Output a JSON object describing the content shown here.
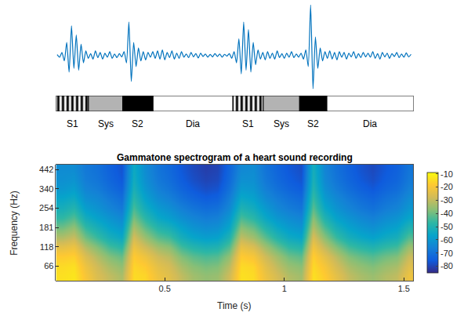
{
  "chart_data": [
    {
      "type": "line",
      "color": "#0072bd",
      "tick_labels": false,
      "xlim": [
        0.045,
        1.54
      ],
      "ylim": [
        -1.0,
        1.45
      ],
      "x": [
        0.05,
        0.06,
        0.07,
        0.08,
        0.09,
        0.1,
        0.11,
        0.12,
        0.13,
        0.14,
        0.15,
        0.16,
        0.17,
        0.18,
        0.19,
        0.2,
        0.21,
        0.22,
        0.23,
        0.24,
        0.25,
        0.26,
        0.27,
        0.28,
        0.29,
        0.3,
        0.31,
        0.32,
        0.33,
        0.34,
        0.35,
        0.36,
        0.37,
        0.38,
        0.39,
        0.4,
        0.41,
        0.42,
        0.43,
        0.44,
        0.45,
        0.46,
        0.47,
        0.48,
        0.49,
        0.5,
        0.51,
        0.52,
        0.53,
        0.54,
        0.55,
        0.56,
        0.57,
        0.58,
        0.59,
        0.6,
        0.61,
        0.62,
        0.63,
        0.64,
        0.65,
        0.66,
        0.67,
        0.68,
        0.69,
        0.7,
        0.71,
        0.72,
        0.73,
        0.74,
        0.75,
        0.76,
        0.77,
        0.78,
        0.79,
        0.8,
        0.81,
        0.82,
        0.83,
        0.84,
        0.85,
        0.86,
        0.87,
        0.88,
        0.89,
        0.9,
        0.91,
        0.92,
        0.93,
        0.94,
        0.95,
        0.96,
        0.97,
        0.98,
        0.99,
        1.0,
        1.01,
        1.02,
        1.03,
        1.04,
        1.05,
        1.06,
        1.07,
        1.08,
        1.09,
        1.1,
        1.11,
        1.12,
        1.13,
        1.14,
        1.15,
        1.16,
        1.17,
        1.18,
        1.19,
        1.2,
        1.21,
        1.22,
        1.23,
        1.24,
        1.25,
        1.26,
        1.27,
        1.28,
        1.29,
        1.3,
        1.31,
        1.32,
        1.33,
        1.34,
        1.35,
        1.36,
        1.37,
        1.38,
        1.39,
        1.4,
        1.41,
        1.42,
        1.43,
        1.44,
        1.45,
        1.46,
        1.47,
        1.48,
        1.49,
        1.5,
        1.51,
        1.52,
        1.53
      ],
      "values": [
        0.02,
        -0.05,
        0.08,
        -0.15,
        0.35,
        -0.45,
        0.8,
        -0.35,
        0.55,
        -0.4,
        0.3,
        -0.2,
        0.12,
        -0.08,
        0.05,
        -0.1,
        0.12,
        -0.06,
        0.08,
        -0.1,
        0.06,
        -0.05,
        0.1,
        -0.08,
        0.04,
        -0.06,
        0.05,
        -0.04,
        0.1,
        -0.2,
        0.9,
        -0.7,
        0.35,
        -0.3,
        0.2,
        -0.15,
        0.1,
        -0.12,
        0.08,
        -0.05,
        0.1,
        -0.08,
        0.12,
        -0.1,
        0.15,
        -0.12,
        0.08,
        -0.06,
        0.12,
        -0.1,
        0.06,
        -0.08,
        0.1,
        -0.05,
        0.04,
        -0.06,
        0.08,
        -0.04,
        0.05,
        -0.07,
        0.06,
        -0.03,
        0.04,
        -0.05,
        0.03,
        -0.04,
        0.05,
        -0.03,
        0.04,
        -0.05,
        0.03,
        -0.02,
        0.05,
        -0.08,
        0.1,
        -0.2,
        0.45,
        -0.5,
        0.9,
        -0.4,
        0.7,
        -0.45,
        0.35,
        -0.25,
        0.15,
        -0.1,
        0.08,
        -0.12,
        0.1,
        -0.08,
        0.06,
        -0.1,
        0.12,
        -0.06,
        0.05,
        -0.08,
        0.06,
        -0.05,
        0.1,
        -0.06,
        0.04,
        -0.05,
        0.06,
        -0.1,
        0.15,
        -0.3,
        1.36,
        -0.9,
        0.5,
        -0.35,
        0.2,
        -0.15,
        0.1,
        -0.08,
        0.12,
        -0.1,
        0.08,
        -0.12,
        0.1,
        -0.05,
        0.08,
        -0.1,
        0.06,
        -0.04,
        0.1,
        -0.08,
        0.05,
        -0.06,
        0.08,
        -0.04,
        0.06,
        -0.05,
        0.1,
        -0.08,
        0.05,
        -0.1,
        0.08,
        -0.04,
        0.06,
        -0.08,
        0.05,
        -0.03,
        0.08,
        -0.06,
        0.04,
        -0.05,
        0.07,
        -0.04,
        0.03
      ]
    },
    {
      "type": "segments",
      "xlim": [
        0.045,
        1.54
      ],
      "segments": [
        {
          "label": "S1",
          "start": 0.045,
          "end": 0.181,
          "color": "#ffffff",
          "marker": "vertical-stripes"
        },
        {
          "label": "Sys",
          "start": 0.181,
          "end": 0.324,
          "color": "#b3b3b3"
        },
        {
          "label": "S2",
          "start": 0.324,
          "end": 0.451,
          "color": "#000000"
        },
        {
          "label": "Dia",
          "start": 0.451,
          "end": 0.785,
          "color": "#ffffff"
        },
        {
          "label": "S1",
          "start": 0.785,
          "end": 0.912,
          "color": "#ffffff",
          "marker": "vertical-stripes"
        },
        {
          "label": "Sys",
          "start": 0.912,
          "end": 1.064,
          "color": "#b3b3b3"
        },
        {
          "label": "S2",
          "start": 1.064,
          "end": 1.178,
          "color": "#000000"
        },
        {
          "label": "Dia",
          "start": 1.178,
          "end": 1.54,
          "color": "#ffffff"
        }
      ]
    },
    {
      "type": "heatmap",
      "title": "Gammatone spectrogram of a heart sound recording",
      "x_label": "Time (s)",
      "y_label": "Frequency (Hz)",
      "xlim": [
        0.045,
        1.54
      ],
      "xticks": [
        0.5,
        1,
        1.5
      ],
      "x": [
        0.07,
        0.12,
        0.17,
        0.22,
        0.27,
        0.32,
        0.37,
        0.42,
        0.47,
        0.52,
        0.57,
        0.62,
        0.67,
        0.72,
        0.77,
        0.82,
        0.87,
        0.92,
        0.97,
        1.02,
        1.07,
        1.12,
        1.17,
        1.22,
        1.27,
        1.32,
        1.37,
        1.42,
        1.47,
        1.52
      ],
      "categories": [
        null,
        "66",
        null,
        "118",
        null,
        "181",
        null,
        "254",
        null,
        "340",
        null,
        "442"
      ],
      "cells": [
        [
          -14,
          -13,
          -20,
          -26,
          -30,
          -33,
          -15,
          -16,
          -22,
          -25,
          -30,
          -34,
          -36,
          -35,
          -28,
          -14,
          -15,
          -22,
          -27,
          -32,
          -34,
          -14,
          -18,
          -24,
          -30,
          -33,
          -35,
          -32,
          -30,
          -22
        ],
        [
          -15,
          -14,
          -22,
          -28,
          -33,
          -36,
          -16,
          -18,
          -24,
          -27,
          -33,
          -37,
          -39,
          -38,
          -31,
          -15,
          -16,
          -24,
          -30,
          -35,
          -37,
          -15,
          -20,
          -27,
          -33,
          -36,
          -38,
          -35,
          -33,
          -25
        ],
        [
          -18,
          -17,
          -26,
          -32,
          -38,
          -41,
          -18,
          -22,
          -28,
          -31,
          -38,
          -42,
          -44,
          -43,
          -36,
          -18,
          -20,
          -28,
          -34,
          -40,
          -42,
          -17,
          -24,
          -31,
          -38,
          -41,
          -43,
          -40,
          -38,
          -29
        ],
        [
          -24,
          -22,
          -32,
          -38,
          -45,
          -48,
          -22,
          -28,
          -34,
          -37,
          -45,
          -49,
          -51,
          -50,
          -43,
          -23,
          -26,
          -34,
          -41,
          -47,
          -49,
          -21,
          -30,
          -38,
          -45,
          -48,
          -50,
          -47,
          -45,
          -35
        ],
        [
          -32,
          -29,
          -40,
          -46,
          -52,
          -55,
          -27,
          -35,
          -42,
          -45,
          -52,
          -56,
          -58,
          -57,
          -50,
          -30,
          -34,
          -42,
          -49,
          -54,
          -56,
          -26,
          -37,
          -46,
          -52,
          -55,
          -57,
          -54,
          -52,
          -43
        ],
        [
          -40,
          -36,
          -47,
          -52,
          -57,
          -60,
          -33,
          -42,
          -49,
          -52,
          -57,
          -61,
          -63,
          -62,
          -56,
          -37,
          -41,
          -49,
          -55,
          -59,
          -61,
          -32,
          -44,
          -52,
          -57,
          -60,
          -62,
          -59,
          -57,
          -50
        ],
        [
          -47,
          -43,
          -53,
          -57,
          -61,
          -64,
          -39,
          -48,
          -55,
          -58,
          -62,
          -65,
          -67,
          -66,
          -60,
          -44,
          -48,
          -55,
          -60,
          -63,
          -65,
          -37,
          -50,
          -57,
          -61,
          -64,
          -66,
          -63,
          -61,
          -56
        ],
        [
          -52,
          -49,
          -58,
          -61,
          -65,
          -68,
          -44,
          -53,
          -59,
          -62,
          -66,
          -69,
          -71,
          -70,
          -64,
          -50,
          -53,
          -59,
          -64,
          -67,
          -69,
          -42,
          -55,
          -61,
          -65,
          -68,
          -70,
          -67,
          -65,
          -60
        ],
        [
          -56,
          -54,
          -62,
          -64,
          -68,
          -71,
          -48,
          -57,
          -63,
          -66,
          -70,
          -73,
          -75,
          -74,
          -67,
          -55,
          -57,
          -63,
          -67,
          -70,
          -72,
          -46,
          -59,
          -64,
          -68,
          -71,
          -73,
          -70,
          -68,
          -63
        ],
        [
          -60,
          -58,
          -65,
          -67,
          -71,
          -74,
          -51,
          -60,
          -66,
          -69,
          -73,
          -76,
          -78,
          -77,
          -70,
          -59,
          -60,
          -66,
          -70,
          -73,
          -75,
          -49,
          -62,
          -67,
          -71,
          -74,
          -76,
          -73,
          -71,
          -66
        ],
        [
          -62,
          -61,
          -67,
          -69,
          -73,
          -76,
          -53,
          -62,
          -68,
          -71,
          -75,
          -78,
          -80,
          -79,
          -72,
          -62,
          -62,
          -68,
          -72,
          -75,
          -77,
          -51,
          -64,
          -69,
          -73,
          -76,
          -78,
          -75,
          -73,
          -68
        ],
        [
          -63,
          -63,
          -68,
          -70,
          -74,
          -77,
          -54,
          -63,
          -69,
          -72,
          -76,
          -79,
          -81,
          -80,
          -73,
          -64,
          -63,
          -69,
          -73,
          -76,
          -78,
          -52,
          -65,
          -70,
          -74,
          -77,
          -79,
          -76,
          -74,
          -69
        ]
      ],
      "colorbar": {
        "range": [
          -85,
          -9
        ],
        "ticks": [
          -10,
          -20,
          -30,
          -40,
          -50,
          -60,
          -70,
          -80
        ]
      }
    }
  ]
}
